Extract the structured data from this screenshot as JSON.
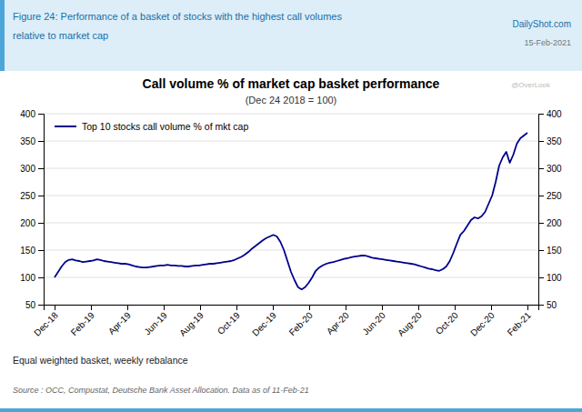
{
  "chart_data": {
    "type": "line",
    "title": "Call volume % of market cap basket performance",
    "subtitle": "(Dec 24 2018 = 100)",
    "annotations": [
      "Figure 24: Performance of a basket of stocks with the highest call volumes",
      "relative to market cap",
      "DailyShot.com",
      "15-Feb-2021",
      "@OverLook",
      "Equal weighted basket, weekly rebalance",
      "Source : OCC, Compustat, Deutsche Bank Asset Allocation. Data as of 11-Feb-21"
    ],
    "x": [
      0,
      0.097,
      0.194,
      0.291,
      0.3881,
      0.4851,
      0.5821,
      0.6791,
      0.7761,
      0.8731,
      0.9701,
      1.0672,
      1.1642,
      1.2612,
      1.3582,
      1.4552,
      1.5522,
      1.6493,
      1.7463,
      1.8433,
      1.9403,
      2.0373,
      2.1343,
      2.2313,
      2.3284,
      2.4254,
      2.5224,
      2.6194,
      2.7164,
      2.8134,
      2.9104,
      3.0075,
      3.1045,
      3.2015,
      3.2985,
      3.3955,
      3.4925,
      3.5896,
      3.6866,
      3.7836,
      3.8806,
      3.9776,
      4.0746,
      4.1716,
      4.2687,
      4.3657,
      4.4627,
      4.5597,
      4.6567,
      4.7537,
      4.8507,
      4.9478,
      5.0448,
      5.1418,
      5.2388,
      5.3358,
      5.4328,
      5.5299,
      5.6269,
      5.7239,
      5.8209,
      5.9179,
      6.0149,
      6.1119,
      6.209,
      6.306,
      6.403,
      6.5,
      6.597,
      6.694,
      6.791,
      6.8881,
      6.9851,
      7.0821,
      7.1791,
      7.2761,
      7.3731,
      7.4701,
      7.5672,
      7.6642,
      7.7612,
      7.8582,
      7.9552,
      8.0522,
      8.1493,
      8.2463,
      8.3433,
      8.4403,
      8.5373,
      8.6343,
      8.7313,
      8.8284,
      8.9254,
      9.0224,
      9.1194,
      9.2164,
      9.3134,
      9.4104,
      9.5075,
      9.6045,
      9.7015,
      9.7985,
      9.8955,
      9.9925,
      10.0896,
      10.1866,
      10.2836,
      10.3806,
      10.4776,
      10.5746,
      10.6716,
      10.7687,
      10.8657,
      10.9627,
      11.0597,
      11.1567,
      11.2537,
      11.3507,
      11.4478,
      11.5448,
      11.6418,
      11.7388,
      11.8358,
      11.9328,
      12.0299,
      12.1269,
      12.2239,
      12.3209,
      12.4179,
      12.5149,
      12.6119,
      12.709,
      12.806,
      12.903,
      13
    ],
    "series": [
      {
        "name": "Top 10 stocks call volume % of mkt cap",
        "color": "#00008B",
        "values": [
          100,
          110,
          120,
          128,
          132,
          133,
          131,
          130,
          128,
          129,
          130,
          131,
          133,
          132,
          130,
          129,
          128,
          127,
          126,
          125,
          125,
          124,
          122,
          120,
          119,
          118,
          118,
          119,
          120,
          121,
          122,
          122,
          123,
          122,
          122,
          121,
          121,
          120,
          120,
          121,
          122,
          122,
          123,
          124,
          125,
          125,
          126,
          127,
          128,
          129,
          130,
          132,
          135,
          138,
          142,
          147,
          153,
          158,
          163,
          168,
          172,
          175,
          178,
          175,
          165,
          150,
          130,
          110,
          95,
          82,
          78,
          82,
          90,
          100,
          112,
          118,
          122,
          125,
          127,
          128,
          130,
          132,
          134,
          135,
          137,
          138,
          139,
          140,
          140,
          138,
          136,
          135,
          134,
          133,
          132,
          131,
          130,
          129,
          128,
          127,
          126,
          125,
          124,
          122,
          120,
          118,
          116,
          115,
          113,
          112,
          115,
          120,
          130,
          145,
          162,
          178,
          185,
          195,
          205,
          210,
          208,
          212,
          220,
          235,
          250,
          275,
          305,
          320,
          330,
          310,
          325,
          345,
          355,
          360,
          365
        ]
      }
    ],
    "xlim": [
      -0.3,
      13.3
    ],
    "xticks": [
      {
        "value": 0,
        "label": "Dec-18"
      },
      {
        "value": 1,
        "label": "Feb-19"
      },
      {
        "value": 2,
        "label": "Apr-19"
      },
      {
        "value": 3,
        "label": "Jun-19"
      },
      {
        "value": 4,
        "label": "Aug-19"
      },
      {
        "value": 5,
        "label": "Oct-19"
      },
      {
        "value": 6,
        "label": "Dec-19"
      },
      {
        "value": 7,
        "label": "Feb-20"
      },
      {
        "value": 8,
        "label": "Apr-20"
      },
      {
        "value": 9,
        "label": "Jun-20"
      },
      {
        "value": 10,
        "label": "Aug-20"
      },
      {
        "value": 11,
        "label": "Oct-20"
      },
      {
        "value": 12,
        "label": "Dec-20"
      },
      {
        "value": 13,
        "label": "Feb-21"
      }
    ],
    "ylim": [
      50,
      400
    ],
    "yticks": [
      50,
      100,
      150,
      200,
      250,
      300,
      350,
      400
    ],
    "y2lim": [
      50,
      400
    ],
    "y2ticks": [
      50,
      100,
      150,
      200,
      250,
      300,
      350,
      400
    ],
    "grid": true,
    "legend": "upper left"
  }
}
